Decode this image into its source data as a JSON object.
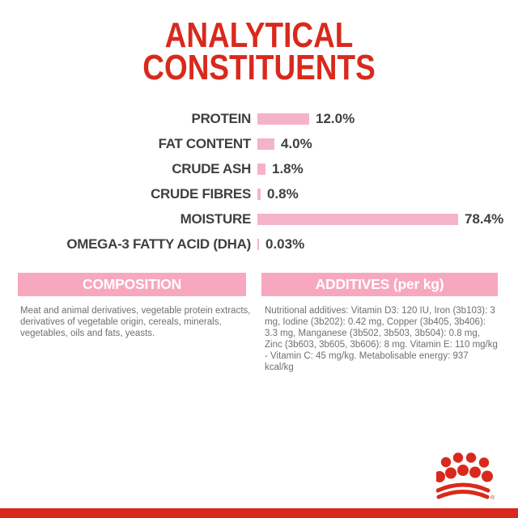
{
  "page": {
    "title_line1": "ANALYTICAL",
    "title_line2": "CONSTITUENTS"
  },
  "chart_data": {
    "type": "bar",
    "orientation": "horizontal",
    "title": "ANALYTICAL CONSTITUENTS",
    "categories": [
      "PROTEIN",
      "FAT CONTENT",
      "CRUDE ASH",
      "CRUDE FIBRES",
      "MOISTURE",
      "OMEGA-3 FATTY ACID (DHA)"
    ],
    "values": [
      12.0,
      4.0,
      1.8,
      0.8,
      78.4,
      0.03
    ],
    "value_labels": [
      "12.0%",
      "4.0%",
      "1.8%",
      "0.8%",
      "78.4%",
      "0.03%"
    ],
    "unit": "%",
    "bar_color": "#f5b3c8",
    "grid": false,
    "legend": false
  },
  "composition": {
    "header": "COMPOSITION",
    "body": "Meat and animal derivatives, vegetable protein extracts, derivatives of vegetable origin, cereals, minerals, vegetables, oils and fats, yeasts."
  },
  "additives": {
    "header": "ADDITIVES (per kg)",
    "body": "Nutritional additives: Vitamin D3: 120 IU, Iron (3b103): 3 mg, Iodine (3b202): 0.42 mg, Copper (3b405, 3b406): 3.3 mg, Manganese (3b502, 3b503, 3b504): 0.8 mg, Zinc (3b603, 3b605, 3b606): 8 mg. Vitamin E: 110 mg/kg - Vitamin C: 45 mg/kg. Metabolisable energy: 937 kcal/kg"
  },
  "brand": {
    "logo_name": "royal-canin-crown",
    "registered_mark": "®"
  },
  "colors": {
    "red": "#d9291c",
    "bar_pink": "#f5b3c8",
    "header_pink": "#f8a8be",
    "label_text": "#3f3f3f",
    "body_text": "#6f6f6f"
  }
}
